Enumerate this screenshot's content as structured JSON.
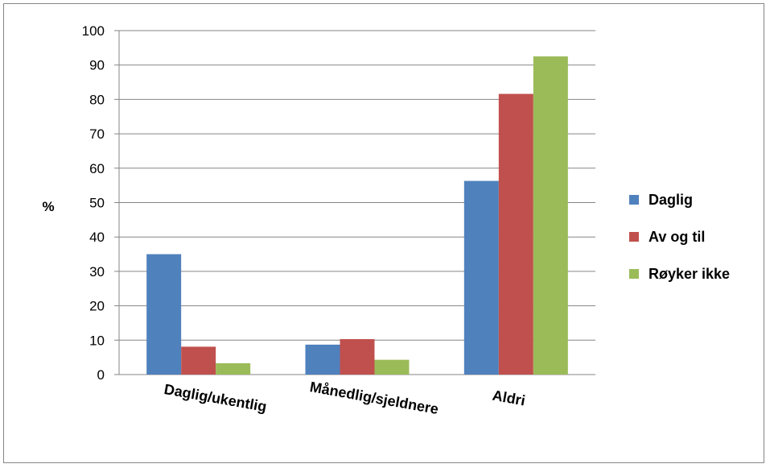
{
  "chart_data": {
    "type": "bar",
    "title": "",
    "xlabel": "",
    "ylabel": "%",
    "ylim": [
      0,
      100
    ],
    "ytick_step": 10,
    "grid": true,
    "legend_position": "right",
    "categories": [
      "Daglig/ukentlig",
      "Månedlig/sjeldnere",
      "Aldri"
    ],
    "series": [
      {
        "name": "Daglig",
        "color": "#4F81BD",
        "values": [
          35,
          8.7,
          56.3
        ]
      },
      {
        "name": "Av og til",
        "color": "#C0504D",
        "values": [
          8.1,
          10.3,
          81.6
        ]
      },
      {
        "name": "Røyker ikke",
        "color": "#9BBB59",
        "values": [
          3.3,
          4.3,
          92.5
        ]
      }
    ]
  }
}
